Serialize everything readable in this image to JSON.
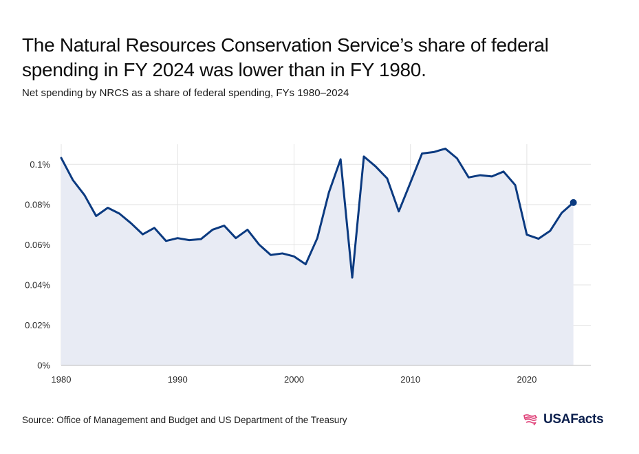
{
  "header": {
    "title": "The Natural Resources Conservation Service’s share of federal spending in FY 2024 was lower than in FY 1980.",
    "subtitle": "Net spending by NRCS as a share of federal spending, FYs 1980–2024"
  },
  "footer": {
    "source": "Source: Office of Management and Budget and US Department of the Treasury",
    "logo_text": "USAFacts"
  },
  "colors": {
    "line": "#0b3a80",
    "area": "#e8ebf4",
    "grid": "#e3e3e3",
    "logo_mark": "#e0457b"
  },
  "chart_data": {
    "type": "area",
    "title": "The Natural Resources Conservation Service’s share of federal spending in FY 2024 was lower than in FY 1980.",
    "subtitle": "Net spending by NRCS as a share of federal spending, FYs 1980–2024",
    "xlabel": "",
    "ylabel": "",
    "xlim": [
      1980,
      2025.5
    ],
    "ylim": [
      0,
      0.11
    ],
    "x_ticks": [
      1980,
      1990,
      2000,
      2010,
      2020
    ],
    "y_ticks": [
      0,
      0.02,
      0.04,
      0.06,
      0.08,
      0.1
    ],
    "y_tick_labels": [
      "0%",
      "0.02%",
      "0.04%",
      "0.06%",
      "0.08%",
      "0.1%"
    ],
    "grid": true,
    "highlight_last_point": true,
    "series": [
      {
        "x": [
          1980,
          1981,
          1982,
          1983,
          1984,
          1985,
          1986,
          1987,
          1988,
          1989,
          1990,
          1991,
          1992,
          1993,
          1994,
          1995,
          1996,
          1997,
          1998,
          1999,
          2000,
          2001,
          2002,
          2003,
          2004,
          2005,
          2006,
          2007,
          2008,
          2009,
          2010,
          2011,
          2012,
          2013,
          2014,
          2015,
          2016,
          2017,
          2018,
          2019,
          2020,
          2021,
          2022,
          2023,
          2024
        ],
        "values": [
          0.1032,
          0.0922,
          0.0847,
          0.0743,
          0.0784,
          0.0755,
          0.0707,
          0.0652,
          0.0684,
          0.0619,
          0.0633,
          0.0623,
          0.0628,
          0.0675,
          0.0695,
          0.0633,
          0.0675,
          0.0601,
          0.0549,
          0.0557,
          0.0542,
          0.0503,
          0.0633,
          0.0861,
          0.1025,
          0.0437,
          0.1039,
          0.099,
          0.093,
          0.0766,
          0.0909,
          0.1054,
          0.1061,
          0.1078,
          0.103,
          0.0935,
          0.0946,
          0.094,
          0.0964,
          0.0897,
          0.065,
          0.063,
          0.0669,
          0.0759,
          0.081
        ]
      }
    ]
  }
}
